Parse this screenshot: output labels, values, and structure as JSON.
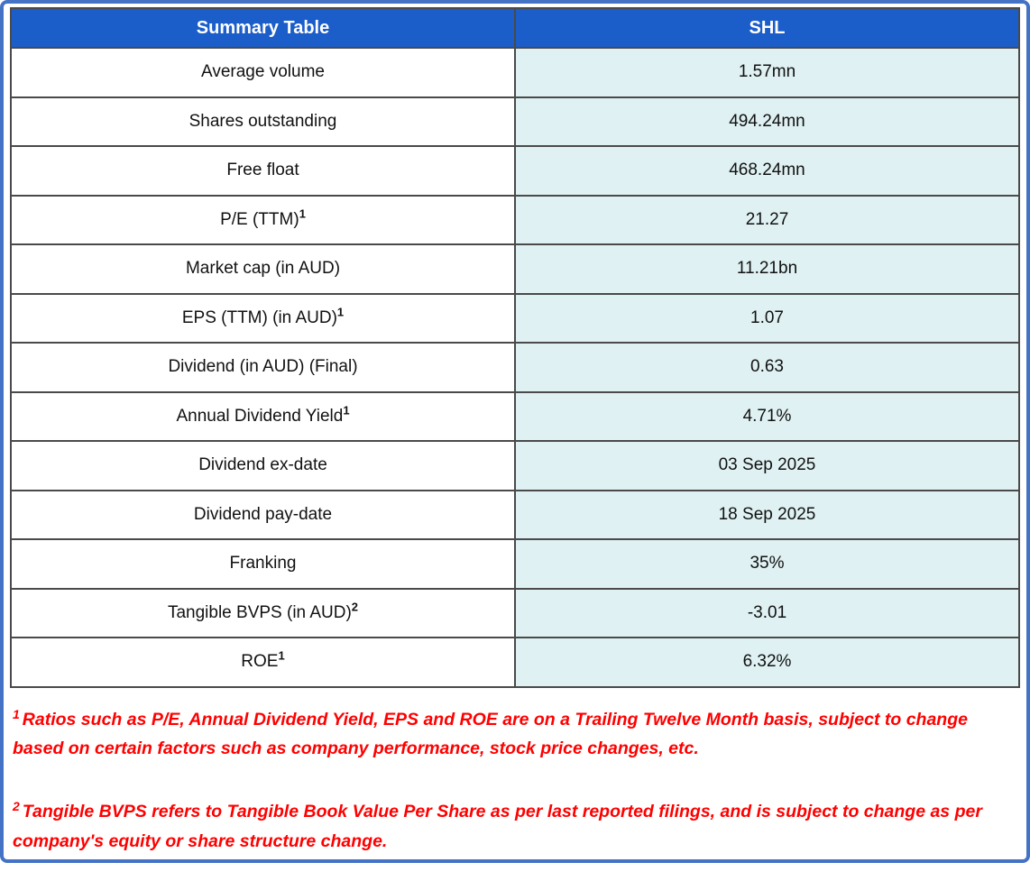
{
  "chart_data": {
    "type": "table",
    "title": "Summary Table",
    "columns": [
      "Summary Table",
      "SHL"
    ],
    "rows": [
      {
        "label": "Average volume",
        "footnote_marker": "",
        "value": "1.57mn"
      },
      {
        "label": "Shares outstanding",
        "footnote_marker": "",
        "value": "494.24mn"
      },
      {
        "label": "Free float",
        "footnote_marker": "",
        "value": "468.24mn"
      },
      {
        "label": "P/E (TTM)",
        "footnote_marker": "1",
        "value": "21.27"
      },
      {
        "label": "Market cap (in AUD)",
        "footnote_marker": "",
        "value": "11.21bn"
      },
      {
        "label": "EPS (TTM) (in AUD)",
        "footnote_marker": "1",
        "value": "1.07"
      },
      {
        "label": "Dividend (in AUD) (Final)",
        "footnote_marker": "",
        "value": "0.63"
      },
      {
        "label": "Annual Dividend Yield",
        "footnote_marker": "1",
        "value": "4.71%"
      },
      {
        "label": "Dividend ex-date",
        "footnote_marker": "",
        "value": "03 Sep 2025"
      },
      {
        "label": "Dividend pay-date",
        "footnote_marker": "",
        "value": "18 Sep 2025"
      },
      {
        "label": "Franking",
        "footnote_marker": "",
        "value": "35%"
      },
      {
        "label": "Tangible BVPS (in AUD)",
        "footnote_marker": "2",
        "value": "-3.01"
      },
      {
        "label": "ROE",
        "footnote_marker": "1",
        "value": "6.32%"
      }
    ],
    "footnotes": [
      {
        "marker": "1",
        "text": "Ratios such as P/E, Annual Dividend Yield, EPS and ROE are on a Trailing Twelve Month basis, subject to change based on certain factors such as company performance, stock price changes, etc."
      },
      {
        "marker": "2",
        "text": "Tangible BVPS refers to Tangible Book Value Per Share as per last reported filings, and is subject to change as per company's equity or share structure change."
      }
    ],
    "layout_hints": {
      "grid": "on",
      "column_split": "50/50"
    }
  },
  "colors": {
    "header_bg": "#1b5dc9",
    "header_text": "#ffffff",
    "value_cell_bg": "#dff1f3",
    "label_cell_bg": "#ffffff",
    "cell_border": "#4a4a4a",
    "outer_border": "#4472c4",
    "footnote_text": "#ff0000",
    "body_text": "#111111"
  }
}
